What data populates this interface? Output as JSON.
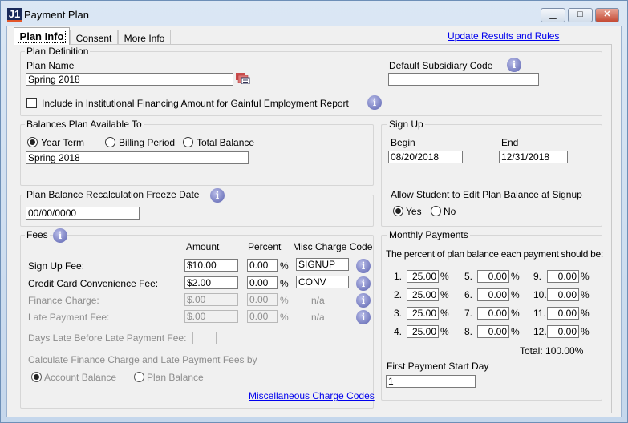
{
  "window": {
    "title": "Payment Plan",
    "logo": "J1",
    "buttons": {
      "minimize": "▁",
      "maximize": "□",
      "close": "✕"
    }
  },
  "tabs": [
    {
      "label": "Plan Info",
      "selected": true
    },
    {
      "label": "Consent"
    },
    {
      "label": "More Info"
    }
  ],
  "update_link": "Update Results and Rules",
  "plan_definition": {
    "group": "Plan Definition",
    "plan_name_label": "Plan Name",
    "plan_name": "Spring 2018",
    "subsidiary_label": "Default Subsidiary Code",
    "subsidiary_value": "",
    "checkbox_label": "Include in Institutional Financing Amount for Gainful Employment Report",
    "checkbox_checked": false
  },
  "balances": {
    "group": "Balances Plan Available To",
    "options": [
      "Year Term",
      "Billing Period",
      "Total Balance"
    ],
    "selected": "Year Term",
    "value": "Spring 2018"
  },
  "freeze": {
    "group": "Plan Balance Recalculation Freeze Date",
    "value": "00/00/0000"
  },
  "fees": {
    "group": "Fees",
    "headers": {
      "amount": "Amount",
      "percent": "Percent",
      "code": "Misc Charge Code"
    },
    "percent_sign": "%",
    "rows": [
      {
        "label": "Sign Up Fee:",
        "amount": "$10.00",
        "percent": "0.00",
        "code": "SIGNUP",
        "enabled": true
      },
      {
        "label": "Credit Card Convenience Fee:",
        "amount": "$2.00",
        "percent": "0.00",
        "code": "CONV",
        "enabled": true
      },
      {
        "label": "Finance Charge:",
        "amount": "$.00",
        "percent": "0.00",
        "code": "n/a",
        "enabled": false
      },
      {
        "label": "Late Payment Fee:",
        "amount": "$.00",
        "percent": "0.00",
        "code": "n/a",
        "enabled": false
      }
    ],
    "days_late_label": "Days Late Before Late Payment Fee:",
    "days_late_value": "",
    "calc_label": "Calculate Finance Charge and Late Payment Fees by",
    "calc_options": [
      "Account Balance",
      "Plan Balance"
    ],
    "calc_selected": "Account Balance",
    "misc_link": "Miscellaneous Charge Codes"
  },
  "signup": {
    "group": "Sign Up",
    "begin_label": "Begin",
    "begin": "08/20/2018",
    "end_label": "End",
    "end": "12/31/2018",
    "allow_label": "Allow Student to Edit Plan Balance at Signup",
    "options": [
      "Yes",
      "No"
    ],
    "selected": "Yes"
  },
  "monthly": {
    "group": "Monthly Payments",
    "instruction": "The percent of plan balance each payment should be:",
    "percent_sign": "%",
    "payments": [
      {
        "n": "1.",
        "v": "25.00"
      },
      {
        "n": "2.",
        "v": "25.00"
      },
      {
        "n": "3.",
        "v": "25.00"
      },
      {
        "n": "4.",
        "v": "25.00"
      },
      {
        "n": "5.",
        "v": "0.00"
      },
      {
        "n": "6.",
        "v": "0.00"
      },
      {
        "n": "7.",
        "v": "0.00"
      },
      {
        "n": "8.",
        "v": "0.00"
      },
      {
        "n": "9.",
        "v": "0.00"
      },
      {
        "n": "10.",
        "v": "0.00"
      },
      {
        "n": "11.",
        "v": "0.00"
      },
      {
        "n": "12.",
        "v": "0.00"
      }
    ],
    "total": "Total: 100.00%",
    "first_day_label": "First Payment Start Day",
    "first_day": "1"
  }
}
